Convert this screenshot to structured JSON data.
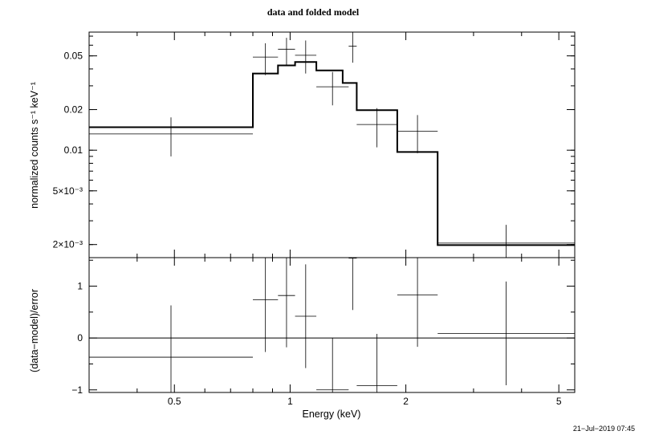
{
  "chart_data": [
    {
      "type": "scatter",
      "title": "data and folded model",
      "xlabel": "Energy (keV)",
      "ylabel": "normalized counts s⁻¹ keV⁻¹",
      "xscale": "log",
      "yscale": "log",
      "xlim": [
        0.3,
        5.5
      ],
      "ylim": [
        0.0016,
        0.075
      ],
      "yticks": [
        {
          "value": 0.05,
          "label": "0.05"
        },
        {
          "value": 0.02,
          "label": "0.02"
        },
        {
          "value": 0.01,
          "label": "0.01"
        },
        {
          "value": 0.005,
          "label": "5×10⁻³"
        },
        {
          "value": 0.002,
          "label": "2×10⁻³"
        }
      ],
      "data_points": [
        {
          "xlo": 0.3,
          "xhi": 0.8,
          "y": 0.0132,
          "ylo": 0.009,
          "yhi": 0.0175
        },
        {
          "xlo": 0.8,
          "xhi": 0.93,
          "y": 0.049,
          "ylo": 0.036,
          "yhi": 0.062
        },
        {
          "xlo": 0.93,
          "xhi": 1.03,
          "y": 0.056,
          "ylo": 0.043,
          "yhi": 0.068
        },
        {
          "xlo": 1.03,
          "xhi": 1.17,
          "y": 0.0505,
          "ylo": 0.037,
          "yhi": 0.065
        },
        {
          "xlo": 1.17,
          "xhi": 1.42,
          "y": 0.0295,
          "ylo": 0.0215,
          "yhi": 0.038
        },
        {
          "xlo": 1.42,
          "xhi": 1.49,
          "y": 0.059,
          "ylo": 0.0445,
          "yhi": 0.075
        },
        {
          "xlo": 1.49,
          "xhi": 1.9,
          "y": 0.0155,
          "ylo": 0.0105,
          "yhi": 0.0205
        },
        {
          "xlo": 1.9,
          "xhi": 2.42,
          "y": 0.0138,
          "ylo": 0.0095,
          "yhi": 0.0182
        },
        {
          "xlo": 2.42,
          "xhi": 5.5,
          "y": 0.00205,
          "ylo": 0.0016,
          "yhi": 0.0028
        }
      ],
      "model_steps": [
        {
          "xlo": 0.3,
          "xhi": 0.8,
          "y": 0.0148
        },
        {
          "xlo": 0.8,
          "xhi": 0.93,
          "y": 0.037
        },
        {
          "xlo": 0.93,
          "xhi": 1.03,
          "y": 0.0425
        },
        {
          "xlo": 1.03,
          "xhi": 1.17,
          "y": 0.045
        },
        {
          "xlo": 1.17,
          "xhi": 1.37,
          "y": 0.039
        },
        {
          "xlo": 1.37,
          "xhi": 1.49,
          "y": 0.0315
        },
        {
          "xlo": 1.49,
          "xhi": 1.9,
          "y": 0.0198
        },
        {
          "xlo": 1.9,
          "xhi": 2.42,
          "y": 0.0097
        },
        {
          "xlo": 2.42,
          "xhi": 5.5,
          "y": 0.00198
        }
      ]
    },
    {
      "type": "scatter",
      "xlabel": "Energy (keV)",
      "ylabel": "(data−model)/error",
      "xscale": "log",
      "xlim": [
        0.3,
        5.5
      ],
      "ylim": [
        -1.05,
        1.55
      ],
      "xticks": [
        {
          "value": 0.5,
          "label": "0.5"
        },
        {
          "value": 1,
          "label": "1"
        },
        {
          "value": 2,
          "label": "2"
        },
        {
          "value": 5,
          "label": "5"
        }
      ],
      "yticks": [
        {
          "value": 1,
          "label": "1"
        },
        {
          "value": 0,
          "label": "0"
        },
        {
          "value": -1,
          "label": "−1"
        }
      ],
      "data_points": [
        {
          "xlo": 0.3,
          "xhi": 0.8,
          "y": -0.37,
          "ylo": -1.05,
          "yhi": 0.63
        },
        {
          "xlo": 0.8,
          "xhi": 0.93,
          "y": 0.74,
          "ylo": -0.27,
          "yhi": 1.55
        },
        {
          "xlo": 0.93,
          "xhi": 1.03,
          "y": 0.82,
          "ylo": -0.18,
          "yhi": 1.55
        },
        {
          "xlo": 1.03,
          "xhi": 1.17,
          "y": 0.42,
          "ylo": -0.58,
          "yhi": 1.42
        },
        {
          "xlo": 1.17,
          "xhi": 1.42,
          "y": -1.0,
          "ylo": -1.05,
          "yhi": 0.0
        },
        {
          "xlo": 1.42,
          "xhi": 1.49,
          "y": 1.54,
          "ylo": 0.54,
          "yhi": 1.55
        },
        {
          "xlo": 1.49,
          "xhi": 1.9,
          "y": -0.92,
          "ylo": -1.05,
          "yhi": 0.08
        },
        {
          "xlo": 1.9,
          "xhi": 2.42,
          "y": 0.83,
          "ylo": -0.17,
          "yhi": 1.55
        },
        {
          "xlo": 2.42,
          "xhi": 5.5,
          "y": 0.09,
          "ylo": -0.91,
          "yhi": 1.09
        }
      ],
      "zero_line": 0
    }
  ],
  "timestamp": "21−Jul−2019 07:45"
}
